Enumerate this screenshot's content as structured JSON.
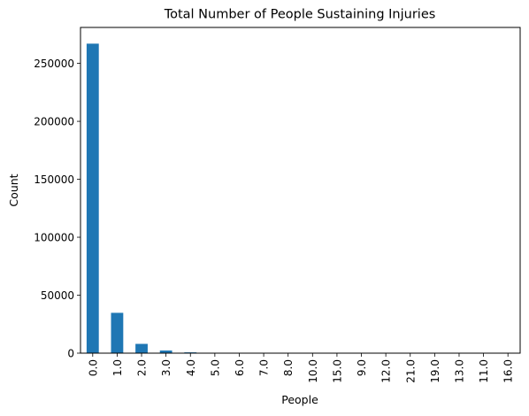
{
  "chart_data": {
    "type": "bar",
    "title": "Total Number of People Sustaining Injuries",
    "xlabel": "People",
    "ylabel": "Count",
    "categories": [
      "0.0",
      "1.0",
      "2.0",
      "3.0",
      "4.0",
      "5.0",
      "6.0",
      "7.0",
      "8.0",
      "10.0",
      "15.0",
      "9.0",
      "12.0",
      "21.0",
      "19.0",
      "13.0",
      "11.0",
      "16.0"
    ],
    "values": [
      267000,
      34800,
      8000,
      2300,
      700,
      300,
      90,
      45,
      25,
      10,
      6,
      5,
      4,
      3,
      3,
      2,
      2,
      1
    ],
    "ylim": [
      0,
      281000
    ],
    "yticks": [
      0,
      50000,
      100000,
      150000,
      200000,
      250000
    ],
    "ytick_labels": [
      "0",
      "50000",
      "100000",
      "150000",
      "200000",
      "250000"
    ],
    "bar_color": "#1f77b4",
    "grid": false,
    "legend": "none"
  }
}
